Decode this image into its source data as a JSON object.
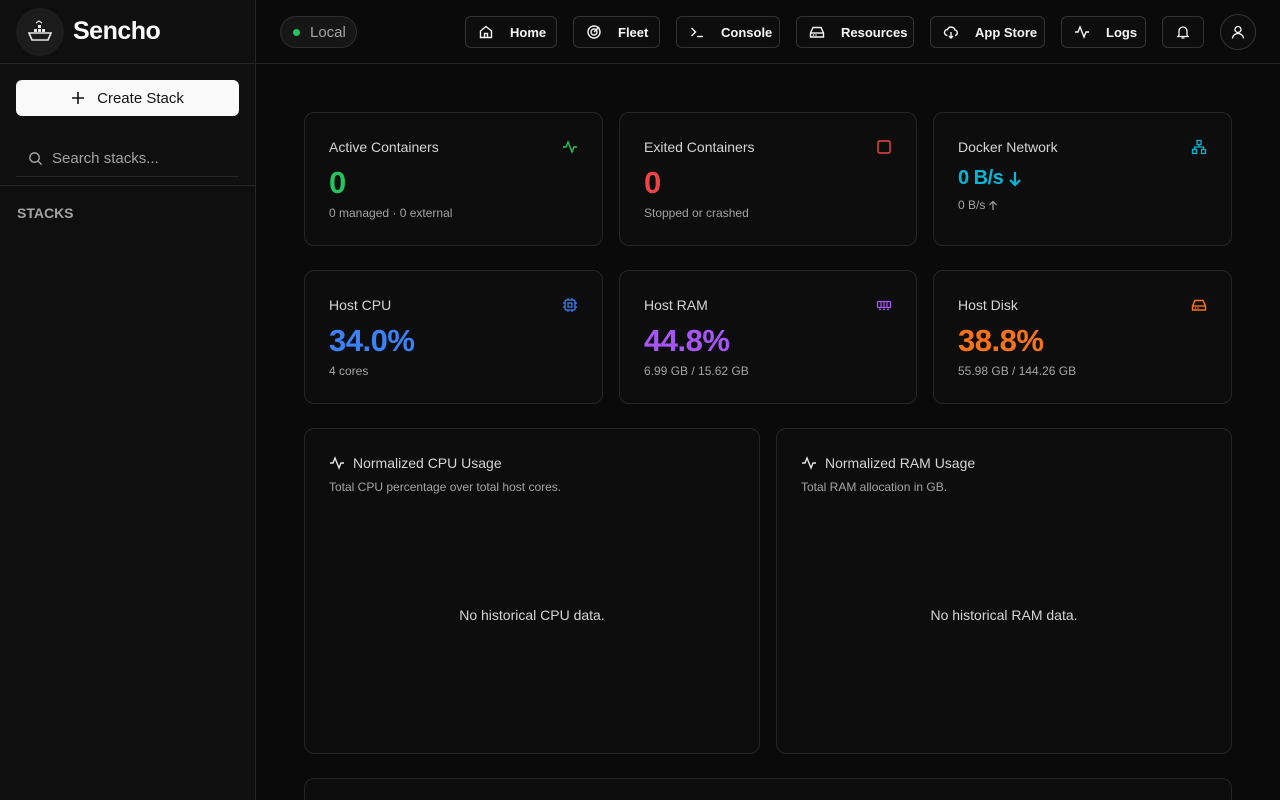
{
  "app": {
    "name": "Sencho"
  },
  "sidebar": {
    "create_label": "Create Stack",
    "search_placeholder": "Search stacks...",
    "section_label": "STACKS"
  },
  "topbar": {
    "environment": "Local",
    "nav": [
      {
        "label": "Home",
        "icon": "home-icon"
      },
      {
        "label": "Fleet",
        "icon": "radar-icon"
      },
      {
        "label": "Console",
        "icon": "terminal-icon"
      },
      {
        "label": "Resources",
        "icon": "hard-drive-icon"
      },
      {
        "label": "App Store",
        "icon": "cloud-download-icon"
      },
      {
        "label": "Logs",
        "icon": "activity-icon"
      }
    ]
  },
  "stats": {
    "active": {
      "title": "Active Containers",
      "value": "0",
      "sub": "0 managed · 0 external",
      "color": "#22c55e"
    },
    "exited": {
      "title": "Exited Containers",
      "value": "0",
      "sub": "Stopped or crashed",
      "color": "#ef4444"
    },
    "network": {
      "title": "Docker Network",
      "value": "0 B/s",
      "sub": "0 B/s",
      "color": "#06b6d4"
    },
    "cpu": {
      "title": "Host CPU",
      "value": "34.0%",
      "sub": "4 cores",
      "color": "#3b82f6"
    },
    "ram": {
      "title": "Host RAM",
      "value": "44.8%",
      "sub": "6.99 GB / 15.62 GB",
      "color": "#a855f7"
    },
    "disk": {
      "title": "Host Disk",
      "value": "38.8%",
      "sub": "55.98 GB / 144.26 GB",
      "color": "#f97316"
    }
  },
  "charts": {
    "cpu": {
      "title": "Normalized CPU Usage",
      "desc": "Total CPU percentage over total host cores.",
      "empty": "No historical CPU data."
    },
    "ram": {
      "title": "Normalized RAM Usage",
      "desc": "Total RAM allocation in GB.",
      "empty": "No historical RAM data."
    }
  }
}
